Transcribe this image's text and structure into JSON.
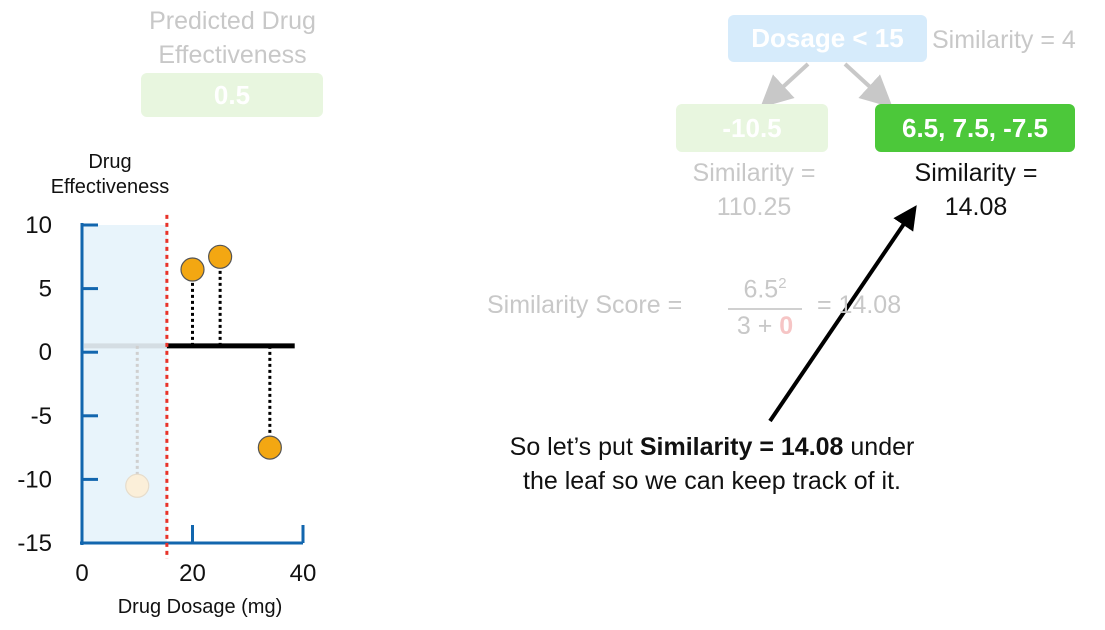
{
  "prediction": {
    "title_line1": "Predicted Drug",
    "title_line2": "Effectiveness",
    "value": "0.5"
  },
  "plot": {
    "y_axis_title_line1": "Drug",
    "y_axis_title_line2": "Effectiveness",
    "x_axis_title": "Drug Dosage (mg)",
    "y_ticks": [
      "10",
      "5",
      "0",
      "-5",
      "-10",
      "-15"
    ],
    "x_ticks": [
      "0",
      "20",
      "40"
    ]
  },
  "chart_data": {
    "type": "scatter",
    "xlabel": "Drug Dosage (mg)",
    "ylabel": "Drug Effectiveness",
    "xlim": [
      0,
      40
    ],
    "ylim": [
      -15,
      10
    ],
    "threshold_x": 15,
    "prediction_line": 0.5,
    "points": [
      {
        "x": 10,
        "y": -10.5,
        "faded": true
      },
      {
        "x": 20,
        "y": 6.5,
        "faded": false
      },
      {
        "x": 25,
        "y": 7.5,
        "faded": false
      },
      {
        "x": 34,
        "y": -7.5,
        "faded": false
      }
    ],
    "colors": {
      "point": "#f3a712",
      "point_faded": "#fbefd9",
      "threshold": "#e8332a",
      "axis": "#1266ae",
      "left_region": "#e8f4fb"
    }
  },
  "tree": {
    "root_label": "Dosage < 15",
    "root_similarity": "Similarity = 4",
    "left_leaf": "-10.5",
    "left_similarity_line1": "Similarity =",
    "left_similarity_line2": "110.25",
    "right_leaf": "6.5, 7.5, -7.5",
    "right_similarity_line1": "Similarity =",
    "right_similarity_line2": "14.08"
  },
  "formula": {
    "label": "Similarity Score =",
    "numerator_base": "6.5",
    "numerator_exp": "2",
    "denominator_prefix": "3 + ",
    "denominator_lambda": "0",
    "result": "= 14.08"
  },
  "caption": {
    "prefix": "So let’s put ",
    "bold": "Similarity = 14.08",
    "suffix_line1": " under",
    "line2": "the leaf so we can keep track of it."
  }
}
